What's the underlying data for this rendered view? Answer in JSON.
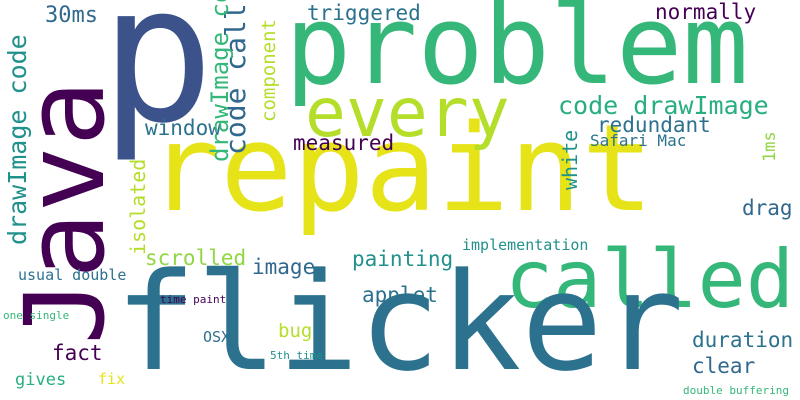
{
  "palette": {
    "background": "#ffffff",
    "deep_purple": "#440154",
    "indigo": "#3b528b",
    "teal_blue": "#2c728e",
    "teal": "#21918c",
    "green": "#28ae80",
    "mid_green": "#35b779",
    "light_green": "#5ec962",
    "lime": "#addc30",
    "yellow": "#e6e419"
  },
  "words": [
    {
      "text": "p",
      "color": "#3b528b"
    },
    {
      "text": "Java",
      "color": "#440154"
    },
    {
      "text": "problem",
      "color": "#35b779"
    },
    {
      "text": "repaint",
      "color": "#e6e419"
    },
    {
      "text": "every",
      "color": "#b5de2b"
    },
    {
      "text": "called",
      "color": "#35b779"
    },
    {
      "text": "flicker",
      "color": "#2c728e"
    },
    {
      "text": "30ms",
      "color": "#31688e"
    },
    {
      "text": "drawImage code",
      "color": "#21918c"
    },
    {
      "text": "code call",
      "color": "#31688e"
    },
    {
      "text": "component",
      "color": "#b5de2b"
    },
    {
      "text": "triggered",
      "color": "#2c728e"
    },
    {
      "text": "normally",
      "color": "#440154"
    },
    {
      "text": "code drawImage",
      "color": "#28ae80"
    },
    {
      "text": "window",
      "color": "#2c728e"
    },
    {
      "text": "redundant",
      "color": "#2c728e"
    },
    {
      "text": "measured",
      "color": "#440154"
    },
    {
      "text": "white",
      "color": "#21918c"
    },
    {
      "text": "Safari Mac",
      "color": "#2c728e"
    },
    {
      "text": "1ms",
      "color": "#90d743"
    },
    {
      "text": "drawImage code",
      "color": "#35b779"
    },
    {
      "text": "isolated",
      "color": "#b5de2b"
    },
    {
      "text": "drag",
      "color": "#31688e"
    },
    {
      "text": "scrolled",
      "color": "#90d743"
    },
    {
      "text": "painting",
      "color": "#21918c"
    },
    {
      "text": "implementation",
      "color": "#21918c"
    },
    {
      "text": "image",
      "color": "#31688e"
    },
    {
      "text": "usual double",
      "color": "#2c728e"
    },
    {
      "text": "applet",
      "color": "#2c728e"
    },
    {
      "text": "time paint",
      "color": "#440154"
    },
    {
      "text": "bug",
      "color": "#b5de2b"
    },
    {
      "text": "one single",
      "color": "#35b779"
    },
    {
      "text": "OSX",
      "color": "#2c728e"
    },
    {
      "text": "duration",
      "color": "#2c728e"
    },
    {
      "text": "fact",
      "color": "#440154"
    },
    {
      "text": "clear",
      "color": "#31688e"
    },
    {
      "text": "5th time",
      "color": "#21918c"
    },
    {
      "text": "gives",
      "color": "#28ae80"
    },
    {
      "text": "fix",
      "color": "#e6e419"
    },
    {
      "text": "double buffering",
      "color": "#35b779"
    }
  ]
}
